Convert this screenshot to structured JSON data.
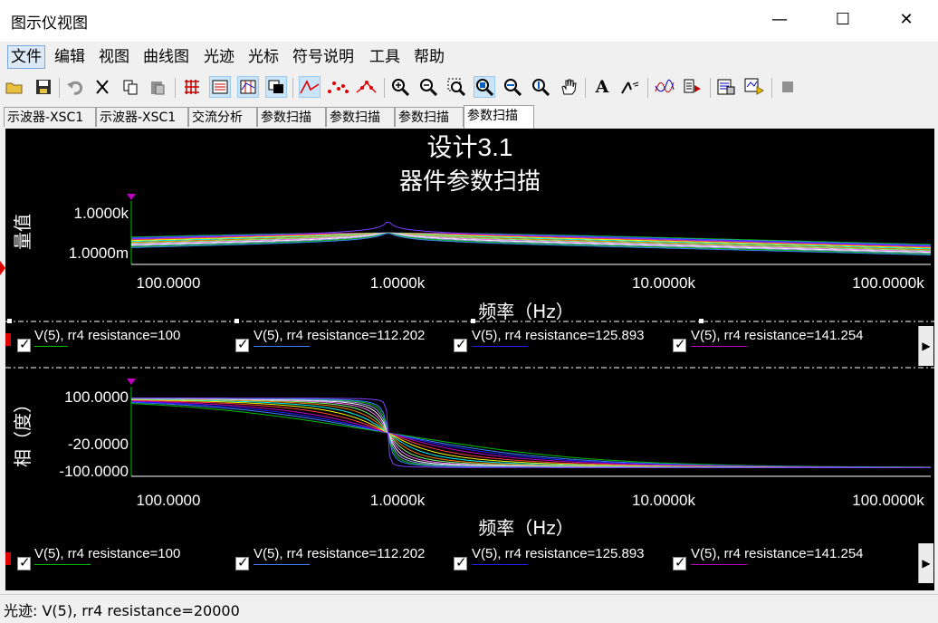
{
  "window": {
    "title": "图示仪视图",
    "min_glyph": "—",
    "max_glyph": "☐",
    "close_glyph": "✕"
  },
  "menu": [
    "文件",
    "编辑",
    "视图",
    "曲线图",
    "光迹",
    "光标",
    "符号说明",
    "工具",
    "帮助"
  ],
  "tabs": [
    "示波器-XSC1",
    "示波器-XSC1",
    "交流分析",
    "参数扫描",
    "参数扫描",
    "参数扫描",
    "参数扫描"
  ],
  "plot": {
    "title": "设计3.1",
    "subtitle": "器件参数扫描",
    "magnitude": {
      "ylabel": "量值",
      "yticks": [
        "1.0000k",
        "1.0000m"
      ],
      "xticks": [
        "100.0000",
        "1.0000k",
        "10.0000k",
        "100.0000k"
      ],
      "xlabel": "频率（Hz）"
    },
    "phase": {
      "ylabel": "相（度）",
      "yticks": [
        "100.0000",
        "-20.0000",
        "-100.0000"
      ],
      "xticks": [
        "100.0000",
        "1.0000k",
        "10.0000k",
        "100.0000k"
      ],
      "xlabel": "频率（Hz）"
    },
    "legend": [
      {
        "label": "V(5), rr4 resistance=100",
        "color": "#00c000"
      },
      {
        "label": "V(5), rr4 resistance=112.202",
        "color": "#4080ff"
      },
      {
        "label": "V(5), rr4 resistance=125.893",
        "color": "#2020ff"
      },
      {
        "label": "V(5), rr4 resistance=141.254",
        "color": "#c000c0"
      }
    ]
  },
  "chart_data": {
    "type": "line",
    "title": "设计3.1 器件参数扫描",
    "xlabel": "频率（Hz）",
    "xscale": "log",
    "xlim": [
      100,
      130000
    ],
    "magnitude_ylim": [
      0.001,
      1000
    ],
    "phase_ylim": [
      -110,
      110
    ],
    "parameter": "rr4 resistance",
    "resonance_hz": 1000,
    "series": [
      {
        "name": "V(5), rr4 resistance=100",
        "q": 0.4
      },
      {
        "name": "V(5), rr4 resistance=112.202",
        "q": 0.5
      },
      {
        "name": "V(5), rr4 resistance=125.893",
        "q": 0.6
      },
      {
        "name": "V(5), rr4 resistance=141.254",
        "q": 0.75
      },
      {
        "name": "V(5), rr4 resistance=20000",
        "q": 60
      }
    ]
  },
  "status": "光迹: V(5), rr4 resistance=20000",
  "colors": {
    "trace_palette": [
      "#00c000",
      "#4080ff",
      "#2020ff",
      "#c000c0",
      "#ff4040",
      "#ffff00",
      "#00ffff",
      "#ff8000",
      "#80ff80",
      "#ff80ff",
      "#ffffff",
      "#a0a0ff"
    ]
  }
}
